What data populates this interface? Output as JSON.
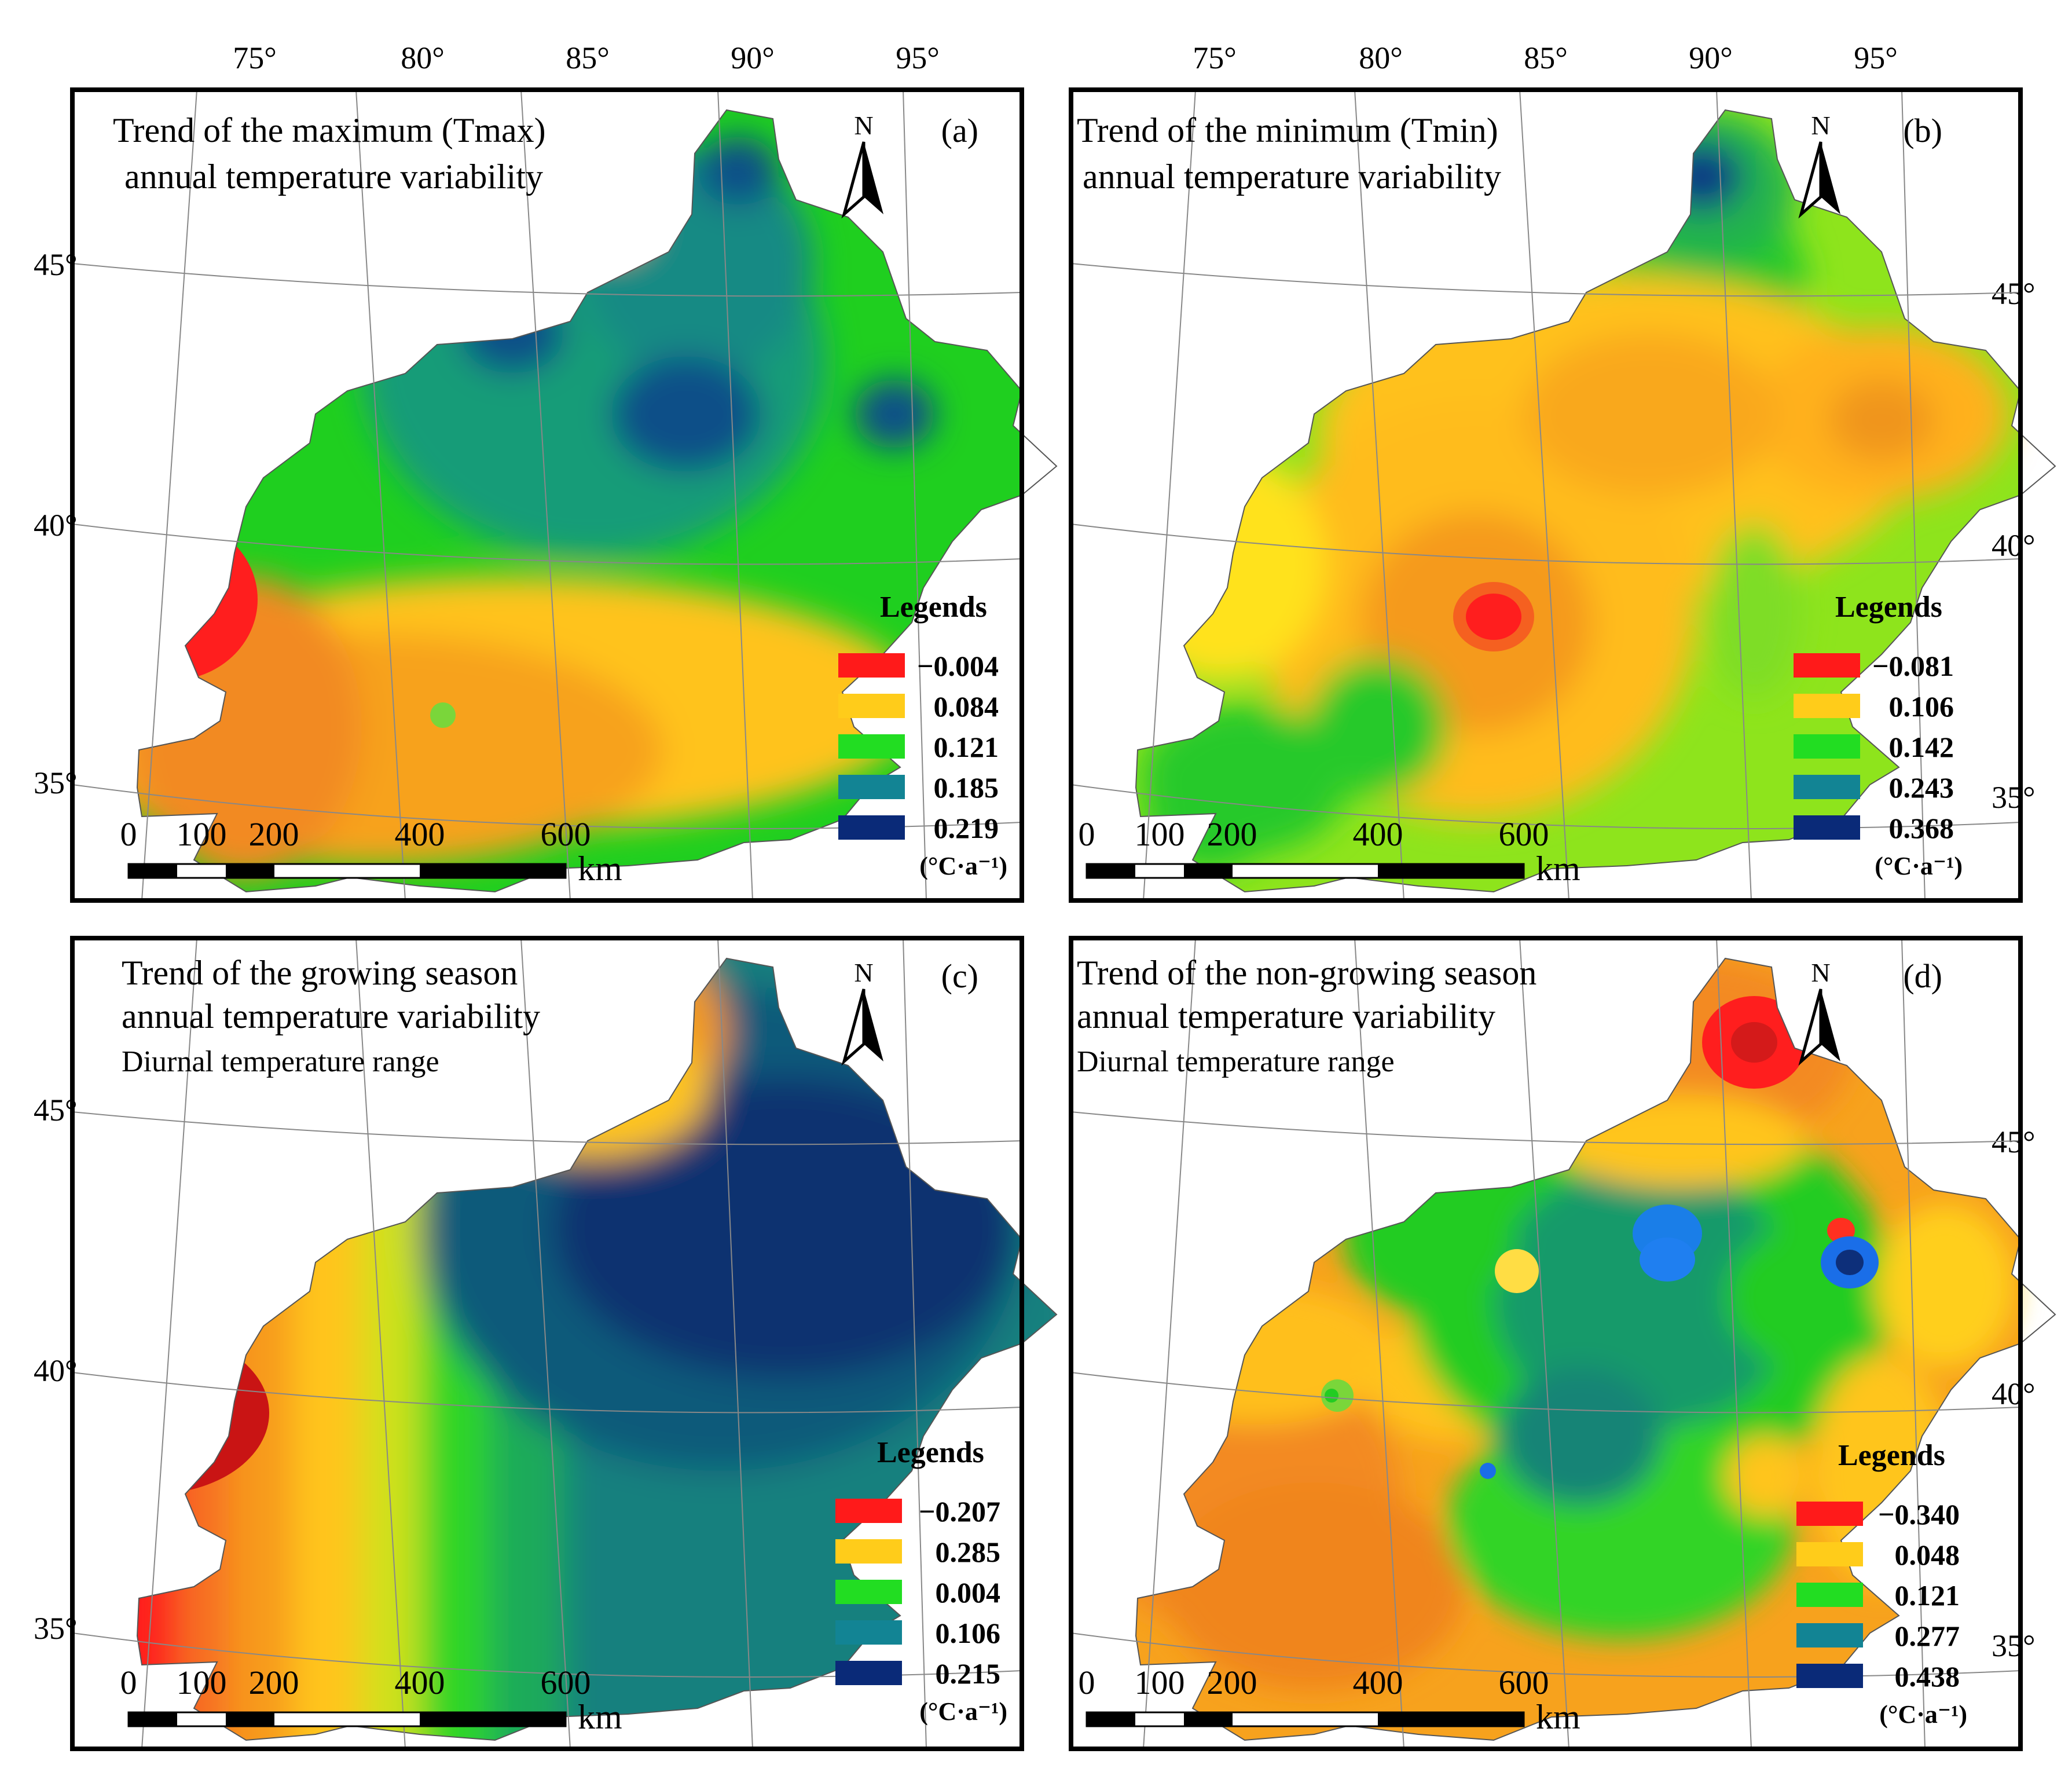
{
  "figure": {
    "panels": [
      {
        "id": "a",
        "letter": "(a)",
        "title_lines": [
          "Trend of the maximum (Tmax)",
          "annual temperature variability"
        ],
        "subtitle": "",
        "north": "N",
        "lon_labels": [
          "75°",
          "80°",
          "85°",
          "90°",
          "95°"
        ],
        "lat_labels": [
          "45°",
          "40°",
          "35°"
        ],
        "legend": {
          "title": "Legends",
          "items": [
            {
              "value": "−0.004",
              "color": "#ff1a1a"
            },
            {
              "value": "0.084",
              "color": "#ffcc1a"
            },
            {
              "value": "0.121",
              "color": "#22dd22"
            },
            {
              "value": "0.185",
              "color": "#128494"
            },
            {
              "value": "0.219",
              "color": "#0a2a78"
            }
          ],
          "unit": "(°C·a⁻¹)"
        },
        "scale": {
          "labels": [
            "0",
            "100",
            "200",
            "400",
            "600"
          ],
          "unit": "km"
        }
      },
      {
        "id": "b",
        "letter": "(b)",
        "title_lines": [
          "Trend of the minimum (Tmin)",
          "annual temperature variability"
        ],
        "subtitle": "",
        "north": "N",
        "lon_labels": [
          "75°",
          "80°",
          "85°",
          "90°",
          "95°"
        ],
        "lat_labels": [
          "45°",
          "40°",
          "35°"
        ],
        "legend": {
          "title": "Legends",
          "items": [
            {
              "value": "−0.081",
              "color": "#ff1a1a"
            },
            {
              "value": "0.106",
              "color": "#ffcc1a"
            },
            {
              "value": "0.142",
              "color": "#22dd22"
            },
            {
              "value": "0.243",
              "color": "#128494"
            },
            {
              "value": "0.368",
              "color": "#0a2a78"
            }
          ],
          "unit": "(°C·a⁻¹)"
        },
        "scale": {
          "labels": [
            "0",
            "100",
            "200",
            "400",
            "600"
          ],
          "unit": "km"
        }
      },
      {
        "id": "c",
        "letter": "(c)",
        "title_lines": [
          "Trend of the growing season",
          "annual temperature variability"
        ],
        "subtitle": "Diurnal temperature range",
        "north": "N",
        "lon_labels": [],
        "lat_labels": [
          "45°",
          "40°",
          "35°"
        ],
        "legend": {
          "title": "Legends",
          "items": [
            {
              "value": "−0.207",
              "color": "#ff1a1a"
            },
            {
              "value": "0.285",
              "color": "#ffcc1a"
            },
            {
              "value": "0.004",
              "color": "#22dd22"
            },
            {
              "value": "0.106",
              "color": "#128494"
            },
            {
              "value": "0.215",
              "color": "#0a2a78"
            }
          ],
          "unit": "(°C·a⁻¹)"
        },
        "scale": {
          "labels": [
            "0",
            "100",
            "200",
            "400",
            "600"
          ],
          "unit": "km"
        }
      },
      {
        "id": "d",
        "letter": "(d)",
        "title_lines": [
          "Trend of the non-growing season",
          "annual temperature variability"
        ],
        "subtitle": "Diurnal temperature range",
        "north": "N",
        "lon_labels": [],
        "lat_labels": [
          "45°",
          "40°",
          "35°"
        ],
        "legend": {
          "title": "Legends",
          "items": [
            {
              "value": "−0.340",
              "color": "#ff1a1a"
            },
            {
              "value": "0.048",
              "color": "#ffcc1a"
            },
            {
              "value": "0.121",
              "color": "#22dd22"
            },
            {
              "value": "0.277",
              "color": "#128494"
            },
            {
              "value": "0.438",
              "color": "#0a2a78"
            }
          ],
          "unit": "(°C·a⁻¹)"
        },
        "scale": {
          "labels": [
            "0",
            "100",
            "200",
            "400",
            "600"
          ],
          "unit": "km"
        }
      }
    ]
  }
}
